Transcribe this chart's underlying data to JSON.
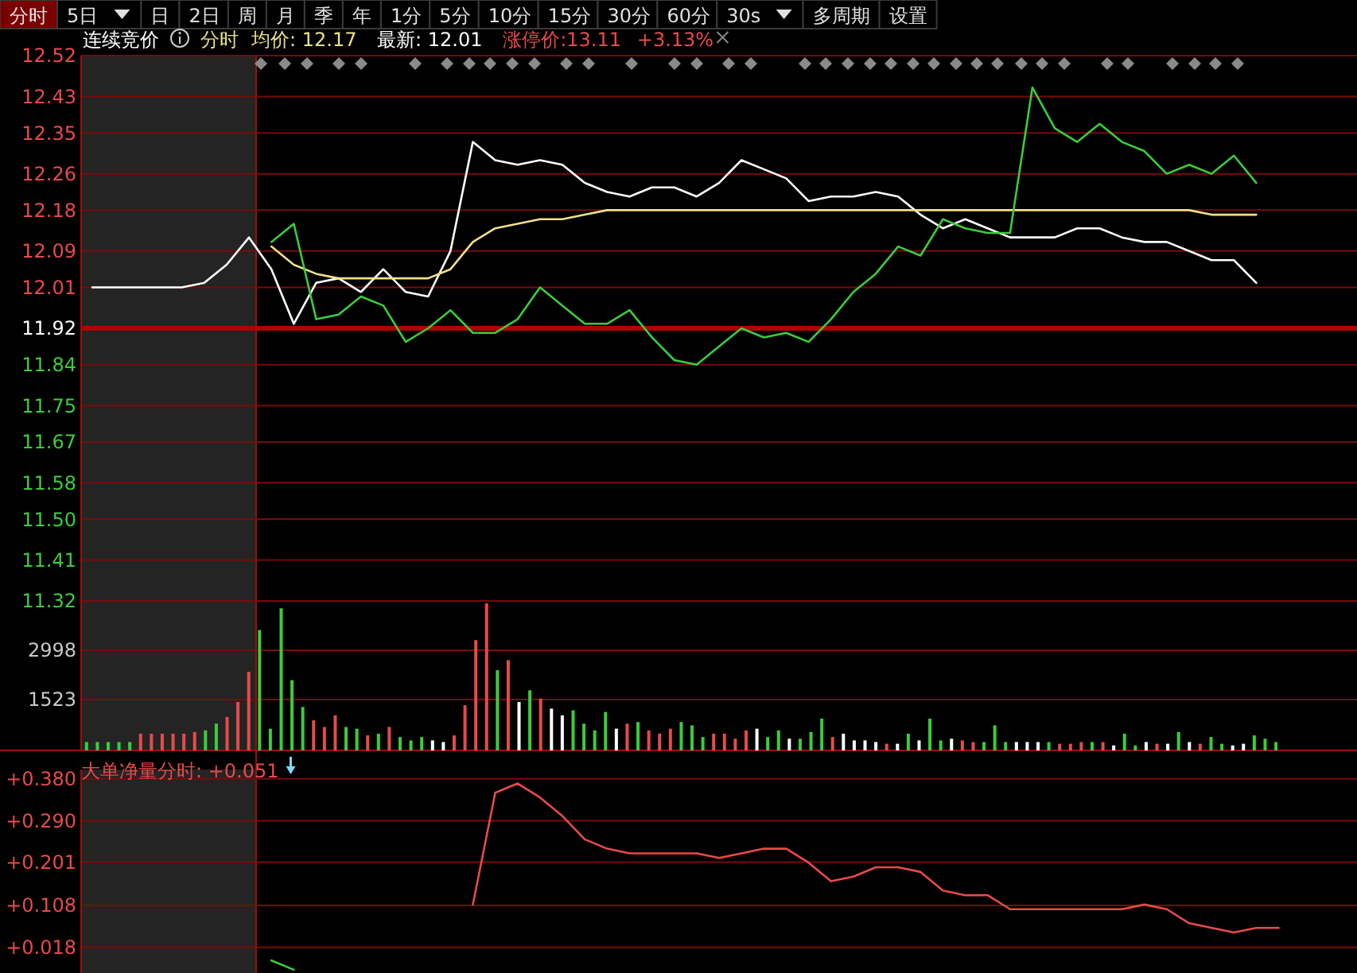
{
  "chart_data": [
    {
      "type": "other",
      "annotations": [
        "分时",
        "5日",
        "日",
        "2日",
        "周",
        "月",
        "季",
        "年",
        "1分",
        "5分",
        "10分",
        "15分",
        "30分",
        "60分",
        "30s",
        "多周期",
        "设置"
      ]
    },
    {
      "type": "line",
      "categories": [
        null,
        null,
        null,
        null,
        null,
        null,
        null,
        null,
        null,
        null,
        null,
        null,
        null,
        null,
        null,
        null,
        null,
        null,
        null,
        null,
        null,
        null,
        null,
        null,
        null,
        null,
        null,
        null,
        null,
        null,
        null,
        null,
        null,
        null,
        null,
        null,
        null,
        null,
        null,
        null,
        null,
        null,
        null,
        null,
        null,
        null,
        null,
        null,
        null,
        null,
        null,
        null,
        null,
        null,
        null,
        null,
        null
      ],
      "annotations": [
        "连续竞价",
        "分时",
        "均价: 12.17",
        "最新: 12.01",
        "涨停价:13.11",
        "+3.13%"
      ],
      "ylim": [
        11.32,
        12.52
      ],
      "yticks": [
        11.32,
        11.41,
        {
          "value": 11.5,
          "label": "11.50"
        },
        11.58,
        11.67,
        11.75,
        11.84,
        11.92,
        12.01,
        12.09,
        12.18,
        12.26,
        12.35,
        12.43,
        12.52
      ],
      "grid": "y",
      "ref_lines": [
        {
          "axis": "y",
          "value": 11.92,
          "color": "#b00000"
        }
      ],
      "series": [
        {
          "color": "#ffffff",
          "values": [
            12.01,
            12.01,
            12.01,
            12.01,
            12.01,
            12.02,
            12.06,
            12.12,
            12.05,
            11.93,
            12.02,
            12.03,
            12.0,
            12.05,
            12.0,
            11.99,
            12.09,
            12.33,
            12.29,
            12.28,
            12.29,
            12.28,
            12.24,
            12.22,
            12.21,
            12.23,
            12.23,
            12.21,
            12.24,
            12.29,
            12.27,
            12.25,
            12.2,
            12.21,
            12.21,
            12.22,
            12.21,
            12.17,
            12.14,
            12.16,
            12.14,
            12.12,
            12.12,
            12.12,
            12.14,
            12.14,
            12.12,
            12.11,
            12.11,
            12.09,
            12.07,
            12.07,
            12.02,
            null,
            null,
            null,
            null
          ]
        },
        {
          "color": "#f0e08a",
          "values": [
            null,
            null,
            null,
            null,
            null,
            null,
            null,
            null,
            12.1,
            12.06,
            12.04,
            12.03,
            12.03,
            12.03,
            12.03,
            12.03,
            12.05,
            12.11,
            12.14,
            12.15,
            12.16,
            12.16,
            12.17,
            12.18,
            12.18,
            12.18,
            12.18,
            12.18,
            12.18,
            12.18,
            12.18,
            12.18,
            12.18,
            12.18,
            12.18,
            12.18,
            12.18,
            12.18,
            12.18,
            12.18,
            12.18,
            12.18,
            12.18,
            12.18,
            12.18,
            12.18,
            12.18,
            12.18,
            12.18,
            12.18,
            12.17,
            12.17,
            12.17,
            null,
            null,
            null,
            null
          ]
        },
        {
          "color": "#3ccc3c",
          "values": [
            null,
            null,
            null,
            null,
            null,
            null,
            null,
            null,
            12.11,
            12.15,
            11.94,
            11.95,
            11.99,
            11.97,
            11.89,
            11.92,
            11.96,
            11.91,
            11.91,
            11.94,
            12.01,
            11.97,
            11.93,
            11.93,
            11.96,
            11.9,
            11.85,
            11.84,
            11.88,
            11.92,
            11.9,
            11.91,
            11.89,
            11.94,
            12.0,
            12.04,
            12.1,
            12.08,
            12.16,
            12.14,
            12.13,
            12.13,
            12.45,
            12.36,
            12.33,
            12.37,
            12.33,
            12.31,
            12.26,
            12.28,
            12.26,
            12.3,
            12.24,
            null,
            null,
            null,
            null
          ]
        }
      ]
    },
    {
      "type": "bar",
      "categories": [
        null,
        null,
        null,
        null,
        null,
        null,
        null,
        null,
        null,
        null,
        null,
        null,
        null,
        null,
        null,
        null,
        null,
        null,
        null,
        null,
        null,
        null,
        null,
        null,
        null,
        null,
        null,
        null,
        null,
        null,
        null,
        null,
        null,
        null,
        null,
        null,
        null,
        null,
        null,
        null,
        null,
        null,
        null,
        null,
        null,
        null,
        null,
        null,
        null,
        null,
        null,
        null,
        null,
        null,
        null,
        null,
        null,
        null,
        null,
        null,
        null,
        null,
        null,
        null,
        null,
        null,
        null,
        null,
        null,
        null,
        null,
        null,
        null,
        null,
        null,
        null,
        null,
        null,
        null,
        null,
        null,
        null,
        null,
        null,
        null,
        null,
        null,
        null,
        null,
        null,
        null,
        null,
        null,
        null,
        null,
        null,
        null,
        null,
        null,
        null,
        null,
        null,
        null,
        null,
        null,
        null,
        null,
        null,
        null,
        null,
        null,
        null,
        null,
        null,
        null,
        null,
        null,
        null
      ],
      "ylim": [
        0,
        4470
      ],
      "yticks": [
        1523,
        2998
      ],
      "grid": "y",
      "values": [
        250,
        250,
        250,
        250,
        250,
        500,
        500,
        500,
        500,
        500,
        550,
        600,
        800,
        1000,
        1450,
        2350,
        3600,
        650,
        4250,
        2100,
        1300,
        900,
        700,
        1050,
        700,
        650,
        450,
        500,
        700,
        400,
        300,
        400,
        300,
        250,
        450,
        1350,
        3300,
        4400,
        2400,
        2700,
        1450,
        1800,
        1550,
        1250,
        1050,
        1200,
        800,
        600,
        1150,
        650,
        800,
        850,
        600,
        500,
        650,
        850,
        750,
        400,
        500,
        500,
        350,
        600,
        650,
        400,
        600,
        350,
        350,
        550,
        950,
        400,
        500,
        300,
        300,
        250,
        200,
        200,
        500,
        300,
        950,
        300,
        350,
        300,
        250,
        250,
        750,
        250,
        250,
        250,
        250,
        250,
        200,
        200,
        250,
        250,
        250,
        150,
        500,
        150,
        250,
        200,
        200,
        550,
        250,
        200,
        400,
        200,
        150,
        200,
        450,
        350,
        250,
        null,
        null,
        null,
        null,
        null,
        null,
        null
      ],
      "colors": [
        "#3ccc3c",
        "#3ccc3c",
        "#3ccc3c",
        "#3ccc3c",
        "#3ccc3c",
        "#e84a4a",
        "#e84a4a",
        "#e84a4a",
        "#e84a4a",
        "#e84a4a",
        "#e84a4a",
        "#3ccc3c",
        "#3ccc3c",
        "#e84a4a",
        "#e84a4a",
        "#e84a4a",
        "#3ccc3c",
        "#3ccc3c",
        "#3ccc3c",
        "#3ccc3c",
        "#3ccc3c",
        "#e84a4a",
        "#e84a4a",
        "#e84a4a",
        "#3ccc3c",
        "#3ccc3c",
        "#e84a4a",
        "#3ccc3c",
        "#e84a4a",
        "#3ccc3c",
        "#3ccc3c",
        "#3ccc3c",
        "#ffffff",
        "#ffffff",
        "#e84a4a",
        "#e84a4a",
        "#e84a4a",
        "#e84a4a",
        "#3ccc3c",
        "#e84a4a",
        "#ffffff",
        "#3ccc3c",
        "#e84a4a",
        "#ffffff",
        "#ffffff",
        "#3ccc3c",
        "#3ccc3c",
        "#3ccc3c",
        "#3ccc3c",
        "#ffffff",
        "#e84a4a",
        "#3ccc3c",
        "#e84a4a",
        "#e84a4a",
        "#e84a4a",
        "#3ccc3c",
        "#3ccc3c",
        "#3ccc3c",
        "#e84a4a",
        "#e84a4a",
        "#e84a4a",
        "#e84a4a",
        "#ffffff",
        "#3ccc3c",
        "#3ccc3c",
        "#ffffff",
        "#3ccc3c",
        "#3ccc3c",
        "#3ccc3c",
        "#e84a4a",
        "#ffffff",
        "#ffffff",
        "#ffffff",
        "#ffffff",
        "#e84a4a",
        "#ffffff",
        "#3ccc3c",
        "#ffffff",
        "#3ccc3c",
        "#3ccc3c",
        "#ffffff",
        "#e84a4a",
        "#e84a4a",
        "#3ccc3c",
        "#3ccc3c",
        "#3ccc3c",
        "#ffffff",
        "#ffffff",
        "#ffffff",
        "#3ccc3c",
        "#e84a4a",
        "#e84a4a",
        "#e84a4a",
        "#3ccc3c",
        "#e84a4a",
        "#ffffff",
        "#3ccc3c",
        "#3ccc3c",
        "#ffffff",
        "#e84a4a",
        "#ffffff",
        "#3ccc3c",
        "#ffffff",
        "#e84a4a",
        "#3ccc3c",
        "#3ccc3c",
        "#ffffff",
        "#ffffff",
        "#3ccc3c",
        "#3ccc3c",
        "#3ccc3c",
        null,
        null,
        null,
        null,
        null,
        null,
        null
      ]
    },
    {
      "type": "line",
      "title": "大单净量分时: +0.051",
      "categories": [
        null,
        null,
        null,
        null,
        null,
        null,
        null,
        null,
        null,
        null,
        null,
        null,
        null,
        null,
        null,
        null,
        null,
        null,
        null,
        null,
        null,
        null,
        null,
        null,
        null,
        null,
        null,
        null,
        null,
        null,
        null,
        null,
        null,
        null,
        null,
        null,
        null,
        null,
        null,
        null,
        null,
        null,
        null,
        null,
        null,
        null,
        null,
        null,
        null,
        null,
        null,
        null,
        null,
        null,
        null,
        null,
        null
      ],
      "ylim": [
        -0.037,
        0.4
      ],
      "yticks": [
        {
          "value": 0.018,
          "label": "+0.018"
        },
        {
          "value": 0.108,
          "label": "+0.108"
        },
        {
          "value": 0.201,
          "label": "+0.201"
        },
        {
          "value": 0.29,
          "label": "+0.290"
        },
        {
          "value": 0.38,
          "label": "+0.380"
        }
      ],
      "grid": "y",
      "series": [
        {
          "color": "#e84a4a",
          "values": [
            null,
            null,
            null,
            null,
            null,
            null,
            null,
            null,
            null,
            null,
            null,
            null,
            null,
            null,
            null,
            null,
            null,
            0.11,
            0.35,
            0.37,
            0.34,
            0.3,
            0.25,
            0.23,
            0.22,
            0.22,
            0.22,
            0.22,
            0.21,
            0.22,
            0.23,
            0.23,
            0.2,
            0.16,
            0.17,
            0.19,
            0.19,
            0.18,
            0.14,
            0.13,
            0.13,
            0.1,
            0.1,
            0.1,
            0.1,
            0.1,
            0.1,
            0.11,
            0.1,
            0.07,
            0.06,
            0.05,
            0.06,
            0.06,
            null,
            null,
            null
          ]
        },
        {
          "color": "#3ccc3c",
          "values": [
            null,
            null,
            null,
            null,
            null,
            null,
            null,
            null,
            -0.01,
            -0.03,
            null,
            null,
            null,
            null,
            null,
            null,
            null,
            null,
            null,
            null,
            null,
            null,
            null,
            null,
            null,
            null,
            null,
            null,
            null,
            null,
            null,
            null,
            null,
            null,
            null,
            null,
            null,
            null,
            null,
            null,
            null,
            null,
            null,
            null,
            null,
            null,
            null,
            null,
            null,
            null,
            null,
            null,
            null,
            null,
            null,
            null,
            null
          ]
        }
      ]
    }
  ]
}
